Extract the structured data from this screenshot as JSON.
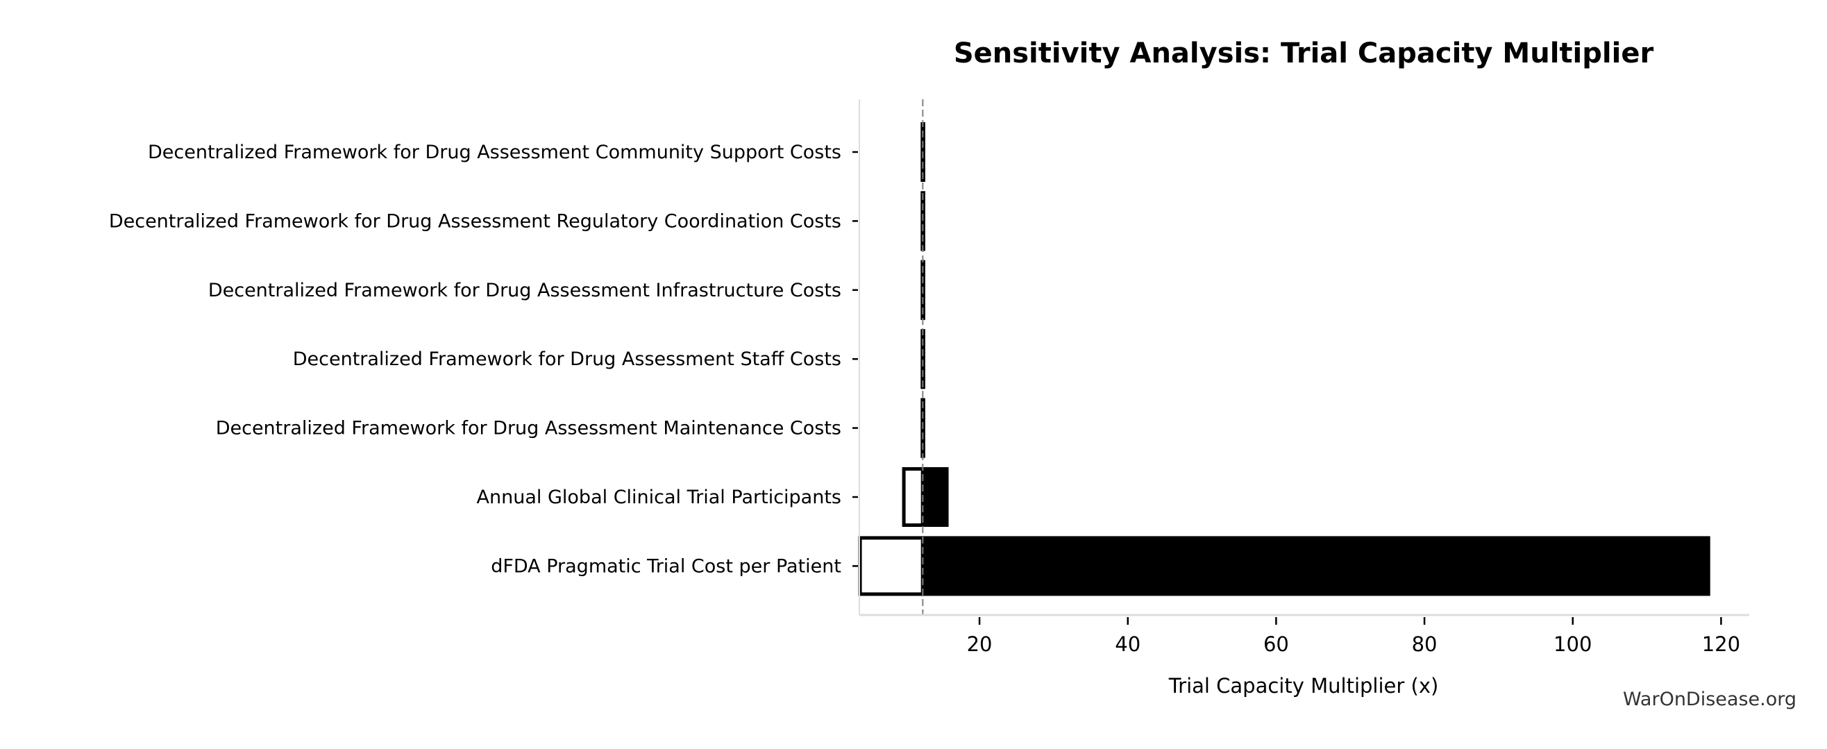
{
  "chart_data": {
    "type": "bar",
    "orientation": "horizontal",
    "title": "Sensitivity Analysis: Trial Capacity Multiplier",
    "xlabel": "Trial Capacity Multiplier (x)",
    "ylabel": "",
    "xlim": [
      3.8,
      123.8
    ],
    "xticks": [
      20,
      40,
      60,
      80,
      100,
      120
    ],
    "baseline": 12.35,
    "grid": false,
    "categories": [
      "Decentralized Framework for Drug Assessment Community Support Costs",
      "Decentralized Framework for Drug Assessment Regulatory Coordination Costs",
      "Decentralized Framework for Drug Assessment Infrastructure Costs",
      "Decentralized Framework for Drug Assessment Staff Costs",
      "Decentralized Framework for Drug Assessment Maintenance Costs",
      "Annual Global Clinical Trial Participants",
      "dFDA Pragmatic Trial Cost per Patient"
    ],
    "series": [
      {
        "values": [
          12.3,
          12.3,
          12.3,
          12.3,
          12.3,
          9.8,
          3.9
        ],
        "color": "#ffffff"
      },
      {
        "values": [
          12.45,
          12.45,
          12.45,
          12.45,
          12.45,
          15.6,
          118.3
        ],
        "color": "#000000"
      }
    ],
    "baseline_color": "#808080",
    "watermark": "WarOnDisease.org"
  }
}
